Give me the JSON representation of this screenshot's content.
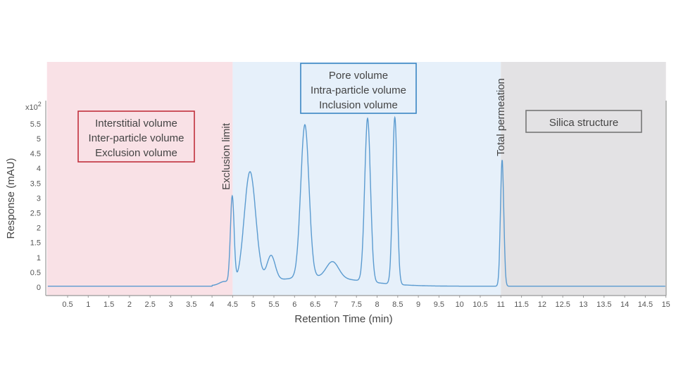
{
  "chart_data": {
    "type": "line",
    "title": "",
    "xlabel": "Retention Time (min)",
    "ylabel": "Response (mAU)",
    "y_multiplier_label": "x10",
    "y_multiplier_exp": "2",
    "xlim": [
      0,
      15
    ],
    "ylim": [
      -0.25,
      6.3
    ],
    "x_ticks": [
      "0.5",
      "1",
      "1.5",
      "2",
      "2.5",
      "3",
      "3.5",
      "4",
      "4.5",
      "5",
      "5.5",
      "6",
      "6.5",
      "7",
      "7.5",
      "8",
      "8.5",
      "9",
      "9.5",
      "10",
      "10.5",
      "11",
      "11.5",
      "12",
      "12.5",
      "13",
      "13.5",
      "14",
      "14.5",
      "15"
    ],
    "y_ticks": [
      "0",
      "0.5",
      "1",
      "1.5",
      "2",
      "2.5",
      "3",
      "3.5",
      "4",
      "4.5",
      "5",
      "5.5"
    ],
    "baseline": 0.03,
    "peaks": [
      {
        "t": 4.3,
        "height": 0.12,
        "sigma": 0.12
      },
      {
        "t": 4.49,
        "height": 2.92,
        "sigma": 0.045
      },
      {
        "t": 4.92,
        "height": 3.75,
        "sigma": 0.14
      },
      {
        "t": 5.43,
        "height": 0.85,
        "sigma": 0.1
      },
      {
        "t": 6.25,
        "height": 5.15,
        "sigma": 0.1
      },
      {
        "t": 6.92,
        "height": 0.55,
        "sigma": 0.15
      },
      {
        "t": 7.77,
        "height": 5.5,
        "sigma": 0.07
      },
      {
        "t": 8.43,
        "height": 5.62,
        "sigma": 0.055
      },
      {
        "t": 11.03,
        "height": 4.25,
        "sigma": 0.04
      },
      {
        "t": 6.5,
        "height": 0.3,
        "sigma": 1.1
      }
    ],
    "regions": [
      {
        "name": "interstitial",
        "from": 0,
        "to": 4.5,
        "color": "#f9e1e6",
        "lines": [
          "Interstitial volume",
          "Inter-particle volume",
          "Exclusion volume"
        ],
        "border": "#c0303c"
      },
      {
        "name": "pore",
        "from": 4.5,
        "to": 11,
        "color": "#e6f0fa",
        "lines": [
          "Pore volume",
          "Intra-particle volume",
          "Inclusion volume"
        ],
        "border": "#3a86c4"
      },
      {
        "name": "silica",
        "from": 11,
        "to": 15,
        "color": "#e3e2e4",
        "lines": [
          "Silica structure"
        ],
        "border": "#777777"
      }
    ],
    "markers": [
      {
        "t": 4.5,
        "label": "Exclusion limit"
      },
      {
        "t": 11,
        "label": "Total permeation"
      }
    ],
    "line_color": "#5b9bd0",
    "grid": false
  }
}
